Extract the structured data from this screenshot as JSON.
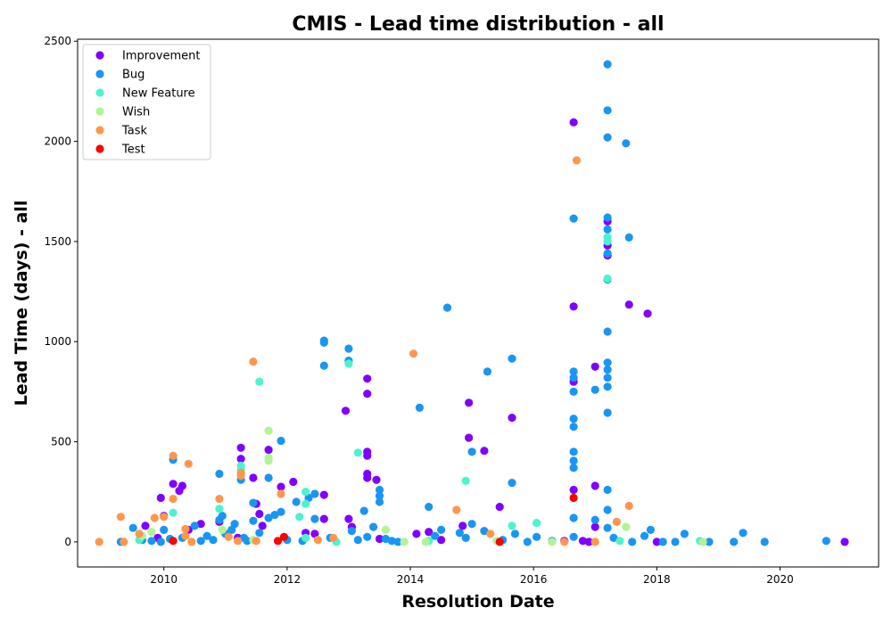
{
  "chart_data": {
    "type": "scatter",
    "title": "CMIS - Lead time distribution - all",
    "xlabel": "Resolution Date",
    "ylabel": "Lead Time (days) - all",
    "xlim": [
      2008.6,
      2021.6
    ],
    "ylim": [
      -125,
      2510
    ],
    "x_ticks": [
      2010,
      2012,
      2014,
      2016,
      2018,
      2020
    ],
    "y_ticks": [
      0,
      500,
      1000,
      1500,
      2000,
      2500
    ],
    "grid": false,
    "legend_position": "upper-left",
    "series": [
      {
        "name": "Improvement",
        "color": "#8000ff",
        "points": [
          [
            2009.7,
            80
          ],
          [
            2009.9,
            20
          ],
          [
            2009.95,
            220
          ],
          [
            2010.0,
            130
          ],
          [
            2010.15,
            290
          ],
          [
            2010.25,
            255
          ],
          [
            2010.3,
            280
          ],
          [
            2010.4,
            60
          ],
          [
            2010.6,
            90
          ],
          [
            2010.9,
            100
          ],
          [
            2011.2,
            20
          ],
          [
            2011.25,
            470
          ],
          [
            2011.25,
            415
          ],
          [
            2011.45,
            320
          ],
          [
            2011.5,
            190
          ],
          [
            2011.55,
            140
          ],
          [
            2011.6,
            80
          ],
          [
            2011.7,
            460
          ],
          [
            2011.9,
            275
          ],
          [
            2012.1,
            300
          ],
          [
            2012.3,
            45
          ],
          [
            2012.45,
            40
          ],
          [
            2012.6,
            235
          ],
          [
            2012.6,
            115
          ],
          [
            2012.95,
            655
          ],
          [
            2013.0,
            115
          ],
          [
            2013.05,
            75
          ],
          [
            2013.3,
            815
          ],
          [
            2013.3,
            740
          ],
          [
            2013.3,
            450
          ],
          [
            2013.3,
            340
          ],
          [
            2013.3,
            320
          ],
          [
            2013.3,
            430
          ],
          [
            2013.45,
            310
          ],
          [
            2013.5,
            15
          ],
          [
            2014.1,
            40
          ],
          [
            2014.3,
            50
          ],
          [
            2014.5,
            10
          ],
          [
            2014.85,
            80
          ],
          [
            2014.95,
            695
          ],
          [
            2014.95,
            520
          ],
          [
            2015.2,
            455
          ],
          [
            2015.45,
            175
          ],
          [
            2015.65,
            620
          ],
          [
            2016.5,
            5
          ],
          [
            2016.65,
            2095
          ],
          [
            2016.65,
            1175
          ],
          [
            2016.65,
            800
          ],
          [
            2016.65,
            260
          ],
          [
            2016.8,
            5
          ],
          [
            2016.9,
            0
          ],
          [
            2017.0,
            875
          ],
          [
            2017.0,
            280
          ],
          [
            2017.0,
            75
          ],
          [
            2017.2,
            1600
          ],
          [
            2017.2,
            1480
          ],
          [
            2017.2,
            1430
          ],
          [
            2017.55,
            1185
          ],
          [
            2017.85,
            1140
          ],
          [
            2018.0,
            0
          ],
          [
            2021.05,
            0
          ]
        ]
      },
      {
        "name": "Bug",
        "color": "#1996f3",
        "points": [
          [
            2009.3,
            0
          ],
          [
            2009.5,
            70
          ],
          [
            2009.65,
            10
          ],
          [
            2009.8,
            5
          ],
          [
            2009.95,
            0
          ],
          [
            2010.0,
            60
          ],
          [
            2010.1,
            15
          ],
          [
            2010.15,
            410
          ],
          [
            2010.3,
            20
          ],
          [
            2010.5,
            80
          ],
          [
            2010.6,
            5
          ],
          [
            2010.7,
            30
          ],
          [
            2010.8,
            10
          ],
          [
            2010.9,
            110
          ],
          [
            2010.9,
            340
          ],
          [
            2010.95,
            130
          ],
          [
            2011.0,
            40
          ],
          [
            2011.1,
            60
          ],
          [
            2011.15,
            90
          ],
          [
            2011.25,
            310
          ],
          [
            2011.3,
            20
          ],
          [
            2011.35,
            5
          ],
          [
            2011.45,
            195
          ],
          [
            2011.45,
            105
          ],
          [
            2011.55,
            45
          ],
          [
            2011.7,
            120
          ],
          [
            2011.7,
            320
          ],
          [
            2011.8,
            135
          ],
          [
            2011.9,
            150
          ],
          [
            2011.9,
            505
          ],
          [
            2012.0,
            10
          ],
          [
            2012.15,
            200
          ],
          [
            2012.25,
            5
          ],
          [
            2012.35,
            220
          ],
          [
            2012.45,
            115
          ],
          [
            2012.45,
            240
          ],
          [
            2012.6,
            1005
          ],
          [
            2012.6,
            995
          ],
          [
            2012.6,
            880
          ],
          [
            2012.7,
            20
          ],
          [
            2013.0,
            965
          ],
          [
            2013.0,
            905
          ],
          [
            2013.05,
            55
          ],
          [
            2013.15,
            10
          ],
          [
            2013.25,
            155
          ],
          [
            2013.3,
            25
          ],
          [
            2013.4,
            75
          ],
          [
            2013.5,
            260
          ],
          [
            2013.5,
            230
          ],
          [
            2013.5,
            200
          ],
          [
            2013.6,
            15
          ],
          [
            2013.7,
            5
          ],
          [
            2013.8,
            0
          ],
          [
            2014.15,
            670
          ],
          [
            2014.3,
            175
          ],
          [
            2014.4,
            30
          ],
          [
            2014.5,
            60
          ],
          [
            2014.6,
            1170
          ],
          [
            2014.8,
            45
          ],
          [
            2014.9,
            20
          ],
          [
            2015.0,
            450
          ],
          [
            2015.0,
            90
          ],
          [
            2015.2,
            55
          ],
          [
            2015.25,
            850
          ],
          [
            2015.5,
            10
          ],
          [
            2015.65,
            915
          ],
          [
            2015.65,
            295
          ],
          [
            2015.7,
            40
          ],
          [
            2015.9,
            0
          ],
          [
            2016.05,
            25
          ],
          [
            2016.3,
            5
          ],
          [
            2016.65,
            1615
          ],
          [
            2016.65,
            850
          ],
          [
            2016.65,
            820
          ],
          [
            2016.65,
            750
          ],
          [
            2016.65,
            615
          ],
          [
            2016.65,
            575
          ],
          [
            2016.65,
            450
          ],
          [
            2016.65,
            405
          ],
          [
            2016.65,
            370
          ],
          [
            2016.65,
            120
          ],
          [
            2016.65,
            25
          ],
          [
            2017.0,
            760
          ],
          [
            2017.0,
            110
          ],
          [
            2017.2,
            2385
          ],
          [
            2017.2,
            2155
          ],
          [
            2017.2,
            2020
          ],
          [
            2017.2,
            1620
          ],
          [
            2017.2,
            1560
          ],
          [
            2017.2,
            1520
          ],
          [
            2017.2,
            1440
          ],
          [
            2017.2,
            1310
          ],
          [
            2017.2,
            1050
          ],
          [
            2017.2,
            895
          ],
          [
            2017.2,
            860
          ],
          [
            2017.2,
            820
          ],
          [
            2017.2,
            775
          ],
          [
            2017.2,
            645
          ],
          [
            2017.2,
            260
          ],
          [
            2017.2,
            160
          ],
          [
            2017.2,
            70
          ],
          [
            2017.3,
            20
          ],
          [
            2017.5,
            1990
          ],
          [
            2017.55,
            1520
          ],
          [
            2017.6,
            0
          ],
          [
            2017.8,
            30
          ],
          [
            2017.9,
            60
          ],
          [
            2018.1,
            0
          ],
          [
            2018.3,
            0
          ],
          [
            2018.45,
            40
          ],
          [
            2018.85,
            0
          ],
          [
            2019.25,
            0
          ],
          [
            2019.4,
            45
          ],
          [
            2019.75,
            0
          ],
          [
            2020.75,
            5
          ]
        ]
      },
      {
        "name": "New Feature",
        "color": "#4df3ce",
        "points": [
          [
            2009.6,
            10
          ],
          [
            2010.15,
            145
          ],
          [
            2010.9,
            165
          ],
          [
            2011.25,
            380
          ],
          [
            2011.25,
            360
          ],
          [
            2011.55,
            800
          ],
          [
            2012.2,
            125
          ],
          [
            2012.3,
            250
          ],
          [
            2012.3,
            190
          ],
          [
            2012.3,
            20
          ],
          [
            2012.8,
            0
          ],
          [
            2013.0,
            890
          ],
          [
            2013.15,
            445
          ],
          [
            2014.3,
            5
          ],
          [
            2014.9,
            305
          ],
          [
            2015.65,
            80
          ],
          [
            2016.05,
            95
          ],
          [
            2017.2,
            1520
          ],
          [
            2017.2,
            1500
          ],
          [
            2017.2,
            1315
          ],
          [
            2017.4,
            5
          ],
          [
            2018.7,
            5
          ]
        ]
      },
      {
        "name": "Wish",
        "color": "#b2f396",
        "points": [
          [
            2009.65,
            30
          ],
          [
            2009.8,
            50
          ],
          [
            2010.95,
            60
          ],
          [
            2011.45,
            10
          ],
          [
            2011.7,
            555
          ],
          [
            2011.7,
            420
          ],
          [
            2011.7,
            405
          ],
          [
            2013.6,
            60
          ],
          [
            2013.9,
            0
          ],
          [
            2014.25,
            0
          ],
          [
            2015.4,
            5
          ],
          [
            2016.3,
            0
          ],
          [
            2017.5,
            75
          ],
          [
            2018.75,
            0
          ]
        ]
      },
      {
        "name": "Task",
        "color": "#ff964d",
        "points": [
          [
            2008.95,
            0
          ],
          [
            2009.3,
            125
          ],
          [
            2009.35,
            0
          ],
          [
            2009.6,
            40
          ],
          [
            2009.85,
            120
          ],
          [
            2010.0,
            125
          ],
          [
            2010.15,
            430
          ],
          [
            2010.15,
            215
          ],
          [
            2010.35,
            30
          ],
          [
            2010.35,
            65
          ],
          [
            2010.4,
            390
          ],
          [
            2010.45,
            0
          ],
          [
            2010.9,
            215
          ],
          [
            2011.05,
            25
          ],
          [
            2011.2,
            5
          ],
          [
            2011.25,
            330
          ],
          [
            2011.25,
            345
          ],
          [
            2011.45,
            900
          ],
          [
            2011.5,
            5
          ],
          [
            2011.9,
            240
          ],
          [
            2012.5,
            10
          ],
          [
            2012.75,
            20
          ],
          [
            2014.05,
            940
          ],
          [
            2014.75,
            160
          ],
          [
            2015.3,
            40
          ],
          [
            2016.5,
            0
          ],
          [
            2016.7,
            1905
          ],
          [
            2017.0,
            0
          ],
          [
            2017.35,
            100
          ],
          [
            2017.55,
            180
          ]
        ]
      },
      {
        "name": "Test",
        "color": "#ff0000",
        "points": [
          [
            2010.15,
            5
          ],
          [
            2011.85,
            5
          ],
          [
            2011.95,
            25
          ],
          [
            2015.45,
            0
          ],
          [
            2016.65,
            220
          ]
        ]
      }
    ]
  }
}
